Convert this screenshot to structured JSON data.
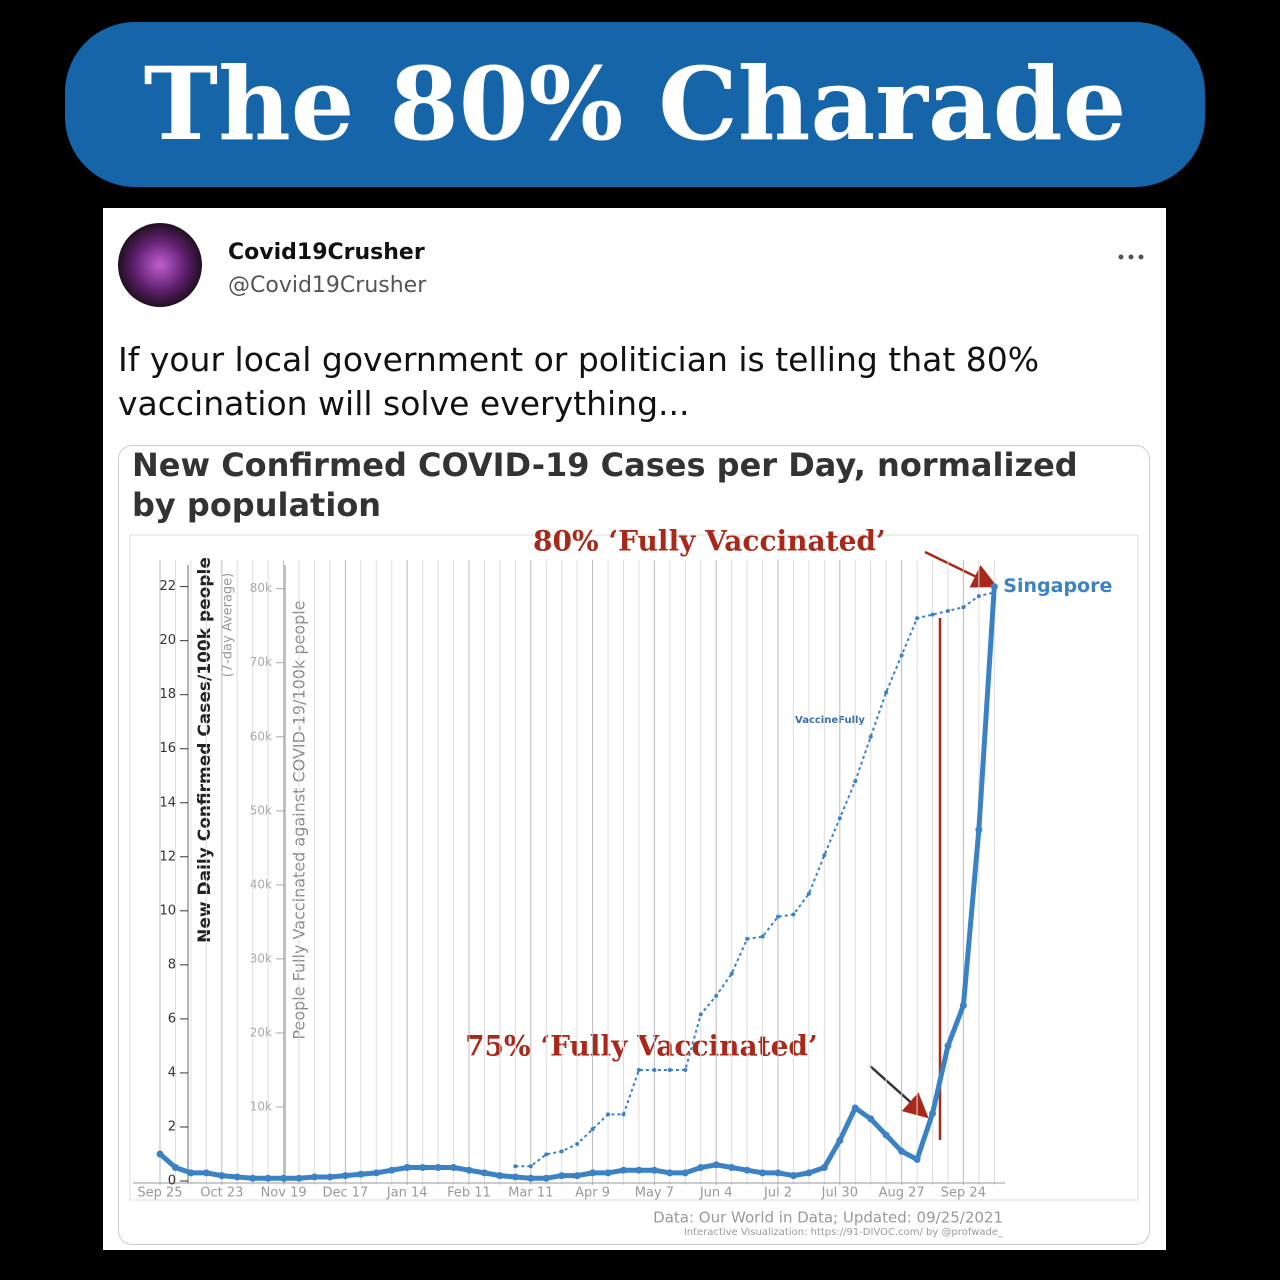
{
  "banner": {
    "title": "The 80% Charade"
  },
  "tweet": {
    "name": "Covid19Crusher",
    "handle": "@Covid19Crusher",
    "text": "If your local government or politician is telling that 80% vaccination will solve everything..."
  },
  "chart_data": {
    "type": "line",
    "title": "New Confirmed COVID-19 Cases per Day, normalized by population",
    "ylabel": "New Daily Confirmed Cases/100k people",
    "ylabel_note": "(7-day Average)",
    "y2label": "People Fully Vaccinated against COVID-19/100k people",
    "annotations": [
      "80% ‘Fully Vaccinated’",
      "75% ‘Fully Vaccinated’",
      "VaccineFully"
    ],
    "source": "Data: Our World in Data; Updated: 09/25/2021",
    "source_note": "Interactive Visualization: https://91-DIVOC.com/ by @profwade_",
    "categories": [
      "Sep 25",
      null,
      null,
      null,
      "Oct 23",
      null,
      null,
      null,
      "Nov 19",
      null,
      null,
      null,
      "Dec 17",
      null,
      null,
      null,
      "Jan 14",
      null,
      null,
      null,
      "Feb 11",
      null,
      null,
      null,
      "Mar 11",
      null,
      null,
      null,
      "Apr 9",
      null,
      null,
      null,
      "May 7",
      null,
      null,
      null,
      "Jun 4",
      null,
      null,
      null,
      "Jul 2",
      null,
      null,
      null,
      "Jul 30",
      null,
      null,
      null,
      "Aug 27",
      null,
      null,
      null,
      "Sep 24",
      null,
      null
    ],
    "series": [
      {
        "name": "Singapore",
        "color": "#3b82c4",
        "values": [
          1.0,
          0.5,
          0.3,
          0.3,
          0.2,
          0.15,
          0.1,
          0.1,
          0.1,
          0.1,
          0.15,
          0.15,
          0.2,
          0.25,
          0.3,
          0.4,
          0.5,
          0.5,
          0.5,
          0.5,
          0.4,
          0.3,
          0.2,
          0.15,
          0.1,
          0.1,
          0.2,
          0.2,
          0.3,
          0.3,
          0.4,
          0.4,
          0.4,
          0.3,
          0.3,
          0.5,
          0.6,
          0.5,
          0.4,
          0.3,
          0.3,
          0.2,
          0.3,
          0.5,
          1.5,
          2.7,
          2.3,
          1.7,
          1.1,
          0.8,
          2.5,
          5,
          6.5,
          13,
          22
        ]
      },
      {
        "name": "VaccineFully",
        "color": "#3b82c4",
        "axis": "y2",
        "values": [
          null,
          null,
          null,
          null,
          null,
          null,
          null,
          null,
          null,
          null,
          null,
          null,
          null,
          null,
          null,
          null,
          null,
          null,
          null,
          null,
          null,
          null,
          null,
          2000,
          2000,
          3600,
          4000,
          5000,
          7000,
          9000,
          9000,
          15000,
          15000,
          15000,
          15000,
          22500,
          25000,
          28000,
          32700,
          33000,
          35700,
          36000,
          38800,
          44000,
          49000,
          54000,
          60000,
          66000,
          71000,
          76000,
          76500,
          77000,
          77500,
          79000,
          79500
        ]
      }
    ],
    "ylim": [
      0,
      22.8
    ],
    "yticks": [
      0,
      2,
      4,
      6,
      8,
      10,
      12,
      14,
      16,
      18,
      20,
      22
    ],
    "y2lim": [
      0,
      83200
    ],
    "y2ticks": [
      {
        "value": 10000,
        "label": "10k"
      },
      {
        "value": 20000,
        "label": "20k"
      },
      {
        "value": 30000,
        "label": "30k"
      },
      {
        "value": 40000,
        "label": "40k"
      },
      {
        "value": 50000,
        "label": "50k"
      },
      {
        "value": 60000,
        "label": "60k"
      },
      {
        "value": 70000,
        "label": "70k"
      },
      {
        "value": 80000,
        "label": "80k"
      }
    ],
    "grid": true
  }
}
